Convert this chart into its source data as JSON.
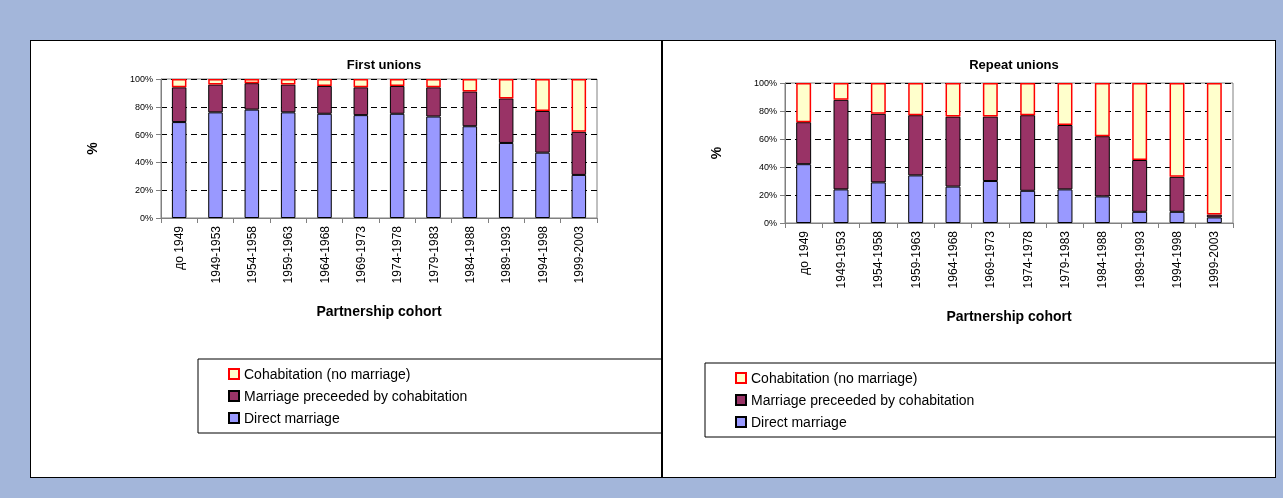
{
  "chart_data": [
    {
      "type": "bar",
      "title": "First unions",
      "xlabel": "Partnership cohort",
      "ylabel": "%",
      "stacked": true,
      "legend": "bottom",
      "grid": "y",
      "categories": [
        "до 1949",
        "1949-1953",
        "1954-1958",
        "1959-1963",
        "1964-1968",
        "1969-1973",
        "1974-1978",
        "1979-1983",
        "1984-1988",
        "1989-1993",
        "1994-1998",
        "1999-2003"
      ],
      "ylim": [
        0,
        100
      ],
      "yticks": [
        {
          "value": 0,
          "label": "0%"
        },
        {
          "value": 20,
          "label": "20%"
        },
        {
          "value": 40,
          "label": "40%"
        },
        {
          "value": 60,
          "label": "60%"
        },
        {
          "value": 80,
          "label": "80%"
        },
        {
          "value": 100,
          "label": "100%"
        }
      ],
      "series": [
        {
          "name": "Direct marriage",
          "color": "#9999ff",
          "values": [
            69,
            76,
            78,
            76,
            75,
            74,
            75,
            73,
            66,
            54,
            47,
            31
          ]
        },
        {
          "name": "Marriage preceeded by cohabitation",
          "color": "#993366",
          "values": [
            25,
            20,
            19,
            20,
            20,
            20,
            20,
            21,
            25,
            32,
            30,
            31
          ]
        },
        {
          "name": "Cohabitation (no marriage)",
          "color": "#ffffcc",
          "values": [
            6,
            4,
            3,
            4,
            5,
            6,
            5,
            6,
            9,
            14,
            23,
            38
          ]
        }
      ]
    },
    {
      "type": "bar",
      "title": "Repeat unions",
      "xlabel": "Partnership cohort",
      "ylabel": "%",
      "stacked": true,
      "legend": "bottom",
      "grid": "y",
      "categories": [
        "до 1949",
        "1949-1953",
        "1954-1958",
        "1959-1963",
        "1964-1968",
        "1969-1973",
        "1974-1978",
        "1979-1983",
        "1984-1988",
        "1989-1993",
        "1994-1998",
        "1999-2003"
      ],
      "ylim": [
        0,
        100
      ],
      "yticks": [
        {
          "value": 0,
          "label": "0%"
        },
        {
          "value": 20,
          "label": "20%"
        },
        {
          "value": 40,
          "label": "40%"
        },
        {
          "value": 60,
          "label": "60%"
        },
        {
          "value": 80,
          "label": "80%"
        },
        {
          "value": 100,
          "label": "100%"
        }
      ],
      "series": [
        {
          "name": "Direct marriage",
          "color": "#9999ff",
          "values": [
            42,
            24,
            29,
            34,
            26,
            30,
            23,
            24,
            19,
            8,
            8,
            4
          ]
        },
        {
          "name": "Marriage preceeded by cohabitation",
          "color": "#993366",
          "values": [
            30,
            64,
            49,
            43,
            50,
            46,
            54,
            46,
            43,
            37,
            25,
            2
          ]
        },
        {
          "name": "Cohabitation (no marriage)",
          "color": "#ffffcc",
          "values": [
            28,
            12,
            22,
            23,
            24,
            24,
            23,
            30,
            38,
            55,
            67,
            94
          ]
        }
      ]
    }
  ]
}
